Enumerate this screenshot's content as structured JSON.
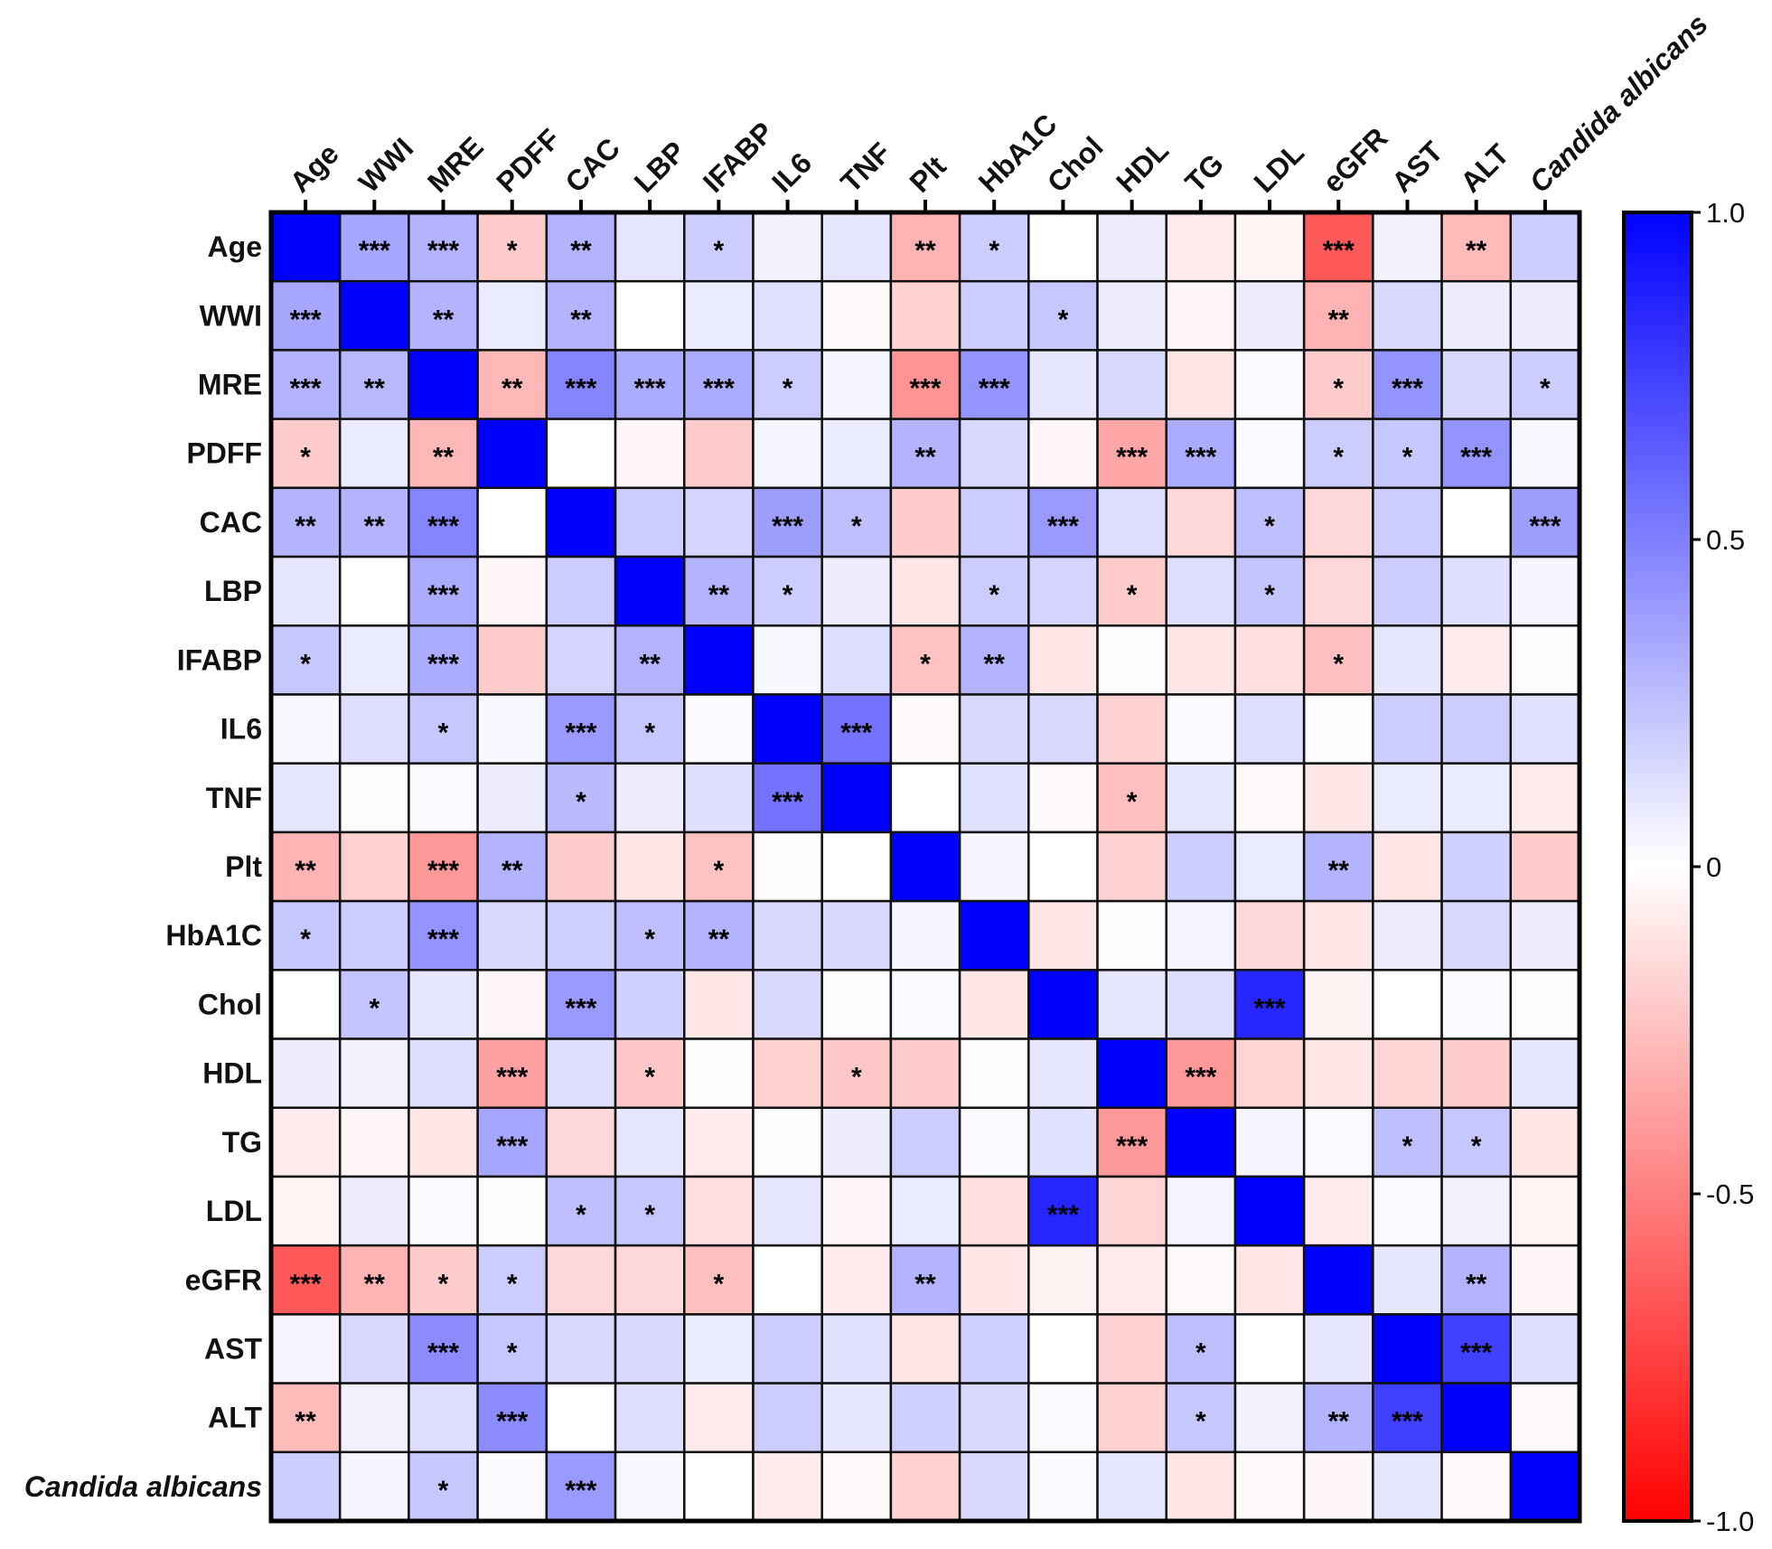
{
  "chart_data": {
    "type": "heatmap",
    "title": "",
    "variables": [
      "Age",
      "WWI",
      "MRE",
      "PDFF",
      "CAC",
      "LBP",
      "IFABP",
      "IL6",
      "TNF",
      "Plt",
      "HbA1C",
      "Chol",
      "HDL",
      "TG",
      "LDL",
      "eGFR",
      "AST",
      "ALT",
      "Candida albicans"
    ],
    "italic_variables": [
      "Candida albicans"
    ],
    "values": [
      [
        1,
        0.35,
        0.3,
        -0.2,
        0.3,
        0.1,
        0.2,
        0.05,
        0.1,
        -0.3,
        0.2,
        0,
        0.07,
        -0.08,
        -0.04,
        -0.65,
        0.05,
        -0.27,
        0.2
      ],
      [
        0.35,
        1,
        0.3,
        0.08,
        0.3,
        0,
        0.08,
        0.12,
        -0.02,
        -0.18,
        0.2,
        0.22,
        0.07,
        -0.03,
        0.07,
        -0.3,
        0.15,
        0.07,
        0.07
      ],
      [
        0.3,
        0.28,
        1,
        -0.28,
        0.48,
        0.33,
        0.33,
        0.2,
        0.04,
        -0.42,
        0.42,
        0.1,
        0.15,
        -0.1,
        0.02,
        -0.2,
        0.42,
        0.15,
        0.2
      ],
      [
        -0.2,
        0.08,
        -0.28,
        1,
        0,
        -0.03,
        -0.2,
        0.04,
        0.08,
        0.3,
        0.15,
        -0.03,
        -0.35,
        0.33,
        0.02,
        0.2,
        0.22,
        0.42,
        0.03
      ],
      [
        0.3,
        0.3,
        0.48,
        0,
        1,
        0.2,
        0.17,
        0.38,
        0.25,
        -0.2,
        0.2,
        0.4,
        0.13,
        -0.15,
        0.25,
        -0.15,
        0.2,
        0,
        0.38
      ],
      [
        0.1,
        0,
        0.33,
        -0.03,
        0.2,
        1,
        0.3,
        0.2,
        0.07,
        -0.1,
        0.2,
        0.17,
        -0.2,
        0.13,
        0.23,
        -0.15,
        0.2,
        0.13,
        0.04
      ],
      [
        0.22,
        0.08,
        0.33,
        -0.2,
        0.17,
        0.3,
        1,
        0.03,
        0.13,
        -0.24,
        0.3,
        -0.1,
        0.01,
        -0.1,
        -0.12,
        -0.25,
        0.1,
        -0.08,
        0.01
      ],
      [
        0.03,
        0.13,
        0.22,
        0.03,
        0.4,
        0.22,
        0.02,
        1,
        0.55,
        -0.02,
        0.15,
        0.15,
        -0.18,
        0.02,
        0.13,
        0.01,
        0.2,
        0.2,
        0.12
      ],
      [
        0.1,
        0.01,
        0.02,
        0.07,
        0.27,
        0.07,
        0.13,
        0.55,
        1,
        0,
        0.12,
        -0.02,
        -0.25,
        0.1,
        -0.02,
        -0.1,
        0.08,
        0.08,
        -0.08
      ],
      [
        -0.3,
        -0.18,
        -0.4,
        0.3,
        -0.2,
        -0.1,
        -0.24,
        -0.01,
        0,
        1,
        0.04,
        0,
        -0.18,
        0.2,
        0.08,
        0.3,
        -0.1,
        0.18,
        -0.2
      ],
      [
        0.22,
        0.2,
        0.42,
        0.15,
        0.18,
        0.25,
        0.3,
        0.15,
        0.15,
        0.04,
        1,
        -0.1,
        0.01,
        0.04,
        -0.15,
        -0.1,
        0.07,
        0.15,
        0.07
      ],
      [
        0,
        0.23,
        0.1,
        -0.03,
        0.4,
        0.18,
        -0.1,
        0.15,
        0.01,
        0.02,
        -0.1,
        1,
        0.1,
        0.13,
        0.85,
        -0.05,
        0,
        0.02,
        0.01
      ],
      [
        0.07,
        0.05,
        0.13,
        -0.37,
        0.13,
        -0.22,
        0.01,
        -0.18,
        -0.22,
        -0.2,
        0.01,
        0.1,
        1,
        -0.4,
        -0.17,
        -0.1,
        -0.17,
        -0.2,
        0.1
      ],
      [
        -0.08,
        -0.03,
        -0.1,
        0.35,
        -0.15,
        0.1,
        -0.08,
        0.01,
        0.07,
        0.2,
        0.02,
        0.12,
        -0.4,
        1,
        0.04,
        0.02,
        0.25,
        0.22,
        -0.1
      ],
      [
        -0.04,
        0.07,
        0.02,
        0.01,
        0.25,
        0.22,
        -0.12,
        0.1,
        -0.03,
        0.08,
        -0.12,
        0.85,
        -0.17,
        0.04,
        1,
        -0.08,
        0.02,
        0.05,
        -0.04
      ],
      [
        -0.65,
        -0.3,
        -0.2,
        0.2,
        -0.15,
        -0.15,
        -0.25,
        0,
        -0.08,
        0.3,
        -0.1,
        -0.05,
        -0.08,
        -0.02,
        -0.1,
        1,
        0.1,
        0.3,
        -0.03
      ],
      [
        0.04,
        0.15,
        0.45,
        0.22,
        0.15,
        0.15,
        0.08,
        0.2,
        0.12,
        -0.1,
        0.18,
        0,
        -0.18,
        0.25,
        0,
        0.1,
        1,
        0.75,
        0.13
      ],
      [
        -0.27,
        0.05,
        0.13,
        0.45,
        0,
        0.13,
        -0.08,
        0.2,
        0.1,
        0.18,
        0.15,
        0.02,
        -0.18,
        0.22,
        0.05,
        0.3,
        0.75,
        1,
        -0.02
      ],
      [
        0.2,
        0.04,
        0.22,
        0.02,
        0.4,
        0.03,
        0,
        -0.08,
        -0.02,
        -0.18,
        0.15,
        0.02,
        0.1,
        -0.1,
        -0.02,
        -0.03,
        0.1,
        -0.02,
        1
      ]
    ],
    "significance": [
      [
        "",
        "***",
        "***",
        "*",
        "**",
        "",
        "*",
        "",
        "",
        "**",
        "*",
        "",
        "",
        "",
        "",
        "***",
        "",
        "**",
        ""
      ],
      [
        "***",
        "",
        "**",
        "",
        "**",
        "",
        "",
        "",
        "",
        "",
        "",
        "*",
        "",
        "",
        "",
        "**",
        "",
        "",
        ""
      ],
      [
        "***",
        "**",
        "",
        "**",
        "***",
        "***",
        "***",
        "*",
        "",
        "***",
        "***",
        "",
        "",
        "",
        "",
        "*",
        "***",
        "",
        "*"
      ],
      [
        "*",
        "",
        "**",
        "",
        "",
        "",
        "",
        "",
        "",
        "**",
        "",
        "",
        "***",
        "***",
        "",
        "*",
        "*",
        "***",
        ""
      ],
      [
        "**",
        "**",
        "***",
        "",
        "",
        "",
        "",
        "***",
        "*",
        "",
        "",
        "***",
        "",
        "",
        "*",
        "",
        "",
        "",
        "***"
      ],
      [
        "",
        "",
        "***",
        "",
        "",
        "",
        "**",
        "*",
        "",
        "",
        "*",
        "",
        "*",
        "",
        "*",
        "",
        "",
        "",
        ""
      ],
      [
        "*",
        "",
        "***",
        "",
        "",
        "**",
        "",
        "",
        "",
        "*",
        "**",
        "",
        "",
        "",
        "",
        "*",
        "",
        "",
        ""
      ],
      [
        "",
        "",
        "*",
        "",
        "***",
        "*",
        "",
        "",
        "***",
        "",
        "",
        "",
        "",
        "",
        "",
        "",
        "",
        "",
        ""
      ],
      [
        "",
        "",
        "",
        "",
        "*",
        "",
        "",
        "***",
        "",
        "",
        "",
        "",
        "*",
        "",
        "",
        "",
        "",
        "",
        ""
      ],
      [
        "**",
        "",
        "***",
        "**",
        "",
        "",
        "*",
        "",
        "",
        "",
        "",
        "",
        "",
        "",
        "",
        "**",
        "",
        "",
        ""
      ],
      [
        "*",
        "",
        "***",
        "",
        "",
        "*",
        "**",
        "",
        "",
        "",
        "",
        "",
        "",
        "",
        "",
        "",
        "",
        "",
        ""
      ],
      [
        "",
        "*",
        "",
        "",
        "***",
        "",
        "",
        "",
        "",
        "",
        "",
        "",
        "",
        "",
        "***",
        "",
        "",
        "",
        ""
      ],
      [
        "",
        "",
        "",
        "***",
        "",
        "*",
        "",
        "",
        "*",
        "",
        "",
        "",
        "",
        "***",
        "",
        "",
        "",
        "",
        ""
      ],
      [
        "",
        "",
        "",
        "***",
        "",
        "",
        "",
        "",
        "",
        "",
        "",
        "",
        "***",
        "",
        "",
        "",
        "*",
        "*",
        ""
      ],
      [
        "",
        "",
        "",
        "",
        "*",
        "*",
        "",
        "",
        "",
        "",
        "",
        "***",
        "",
        "",
        "",
        "",
        "",
        "",
        ""
      ],
      [
        "***",
        "**",
        "*",
        "*",
        "",
        "",
        "*",
        "",
        "",
        "**",
        "",
        "",
        "",
        "",
        "",
        "",
        "",
        "**",
        ""
      ],
      [
        "",
        "",
        "***",
        "*",
        "",
        "",
        "",
        "",
        "",
        "",
        "",
        "",
        "",
        "*",
        "",
        "",
        "",
        "***",
        ""
      ],
      [
        "**",
        "",
        "",
        "***",
        "",
        "",
        "",
        "",
        "",
        "",
        "",
        "",
        "",
        "*",
        "",
        "**",
        "***",
        "",
        ""
      ],
      [
        "",
        "",
        "*",
        "",
        "***",
        "",
        "",
        "",
        "",
        "",
        "",
        "",
        "",
        "",
        "",
        "",
        "",
        "",
        ""
      ]
    ],
    "colorbar": {
      "range": [
        -1.0,
        1.0
      ],
      "ticks": [
        "1.0",
        "0.5",
        "0",
        "-0.5",
        "-1.0"
      ],
      "tick_values": [
        1.0,
        0.5,
        0,
        -0.5,
        -1.0
      ],
      "high_color": "#0000FF",
      "mid_color": "#FFFFFF",
      "low_color": "#FF0000"
    },
    "legend_placement": "right"
  }
}
